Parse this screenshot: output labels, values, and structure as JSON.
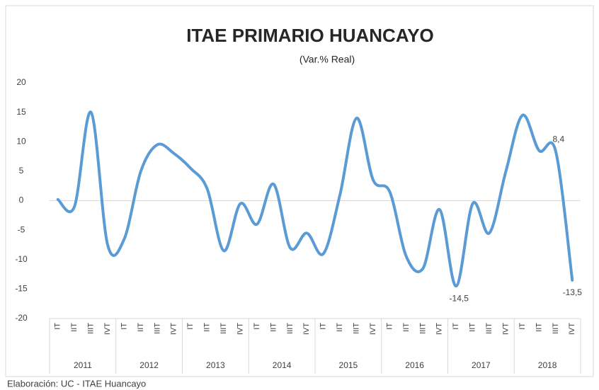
{
  "chart_data": {
    "type": "line",
    "title": "ITAE PRIMARIO HUANCAYO",
    "subtitle": "(Var.% Real)",
    "footer": "Elaboración: UC - ITAE Huancayo",
    "categories": [
      "IT",
      "IIT",
      "IIIT",
      "IVT",
      "IT",
      "IIT",
      "IIIT",
      "IVT",
      "IT",
      "IIT",
      "IIIT",
      "IVT",
      "IT",
      "IIT",
      "IIIT",
      "IVT",
      "IT",
      "IIT",
      "IIIT",
      "IVT",
      "IT",
      "IIT",
      "IIIT",
      "IVT",
      "IT",
      "IIT",
      "IIIT",
      "IVT",
      "IT",
      "IIT",
      "IIIT",
      "IVT"
    ],
    "groups": [
      "2011",
      "2012",
      "2013",
      "2014",
      "2015",
      "2016",
      "2017",
      "2018"
    ],
    "series": [
      {
        "name": "ITAE",
        "color": "#5b9bd5",
        "values": [
          0.2,
          -1,
          15,
          -7.5,
          -6.5,
          5,
          9.5,
          8,
          5.5,
          2,
          -8.5,
          -0.5,
          -4,
          2.8,
          -8,
          -5.5,
          -9,
          1,
          14,
          3.5,
          1.5,
          -9.5,
          -11.5,
          -1.5,
          -14.5,
          -0.5,
          -5.5,
          5,
          14.5,
          8.5,
          8.4,
          -13.5
        ],
        "value_labels": [
          null,
          null,
          null,
          null,
          null,
          null,
          null,
          null,
          null,
          null,
          null,
          null,
          null,
          null,
          null,
          null,
          null,
          null,
          null,
          null,
          null,
          null,
          null,
          null,
          "-14,5",
          null,
          null,
          null,
          null,
          null,
          "8,4",
          "-13,5"
        ]
      }
    ],
    "ylim": [
      -20,
      20
    ],
    "yticks": [
      -20,
      -15,
      -10,
      -5,
      0,
      5,
      10,
      15,
      20
    ],
    "zero_line": true
  }
}
